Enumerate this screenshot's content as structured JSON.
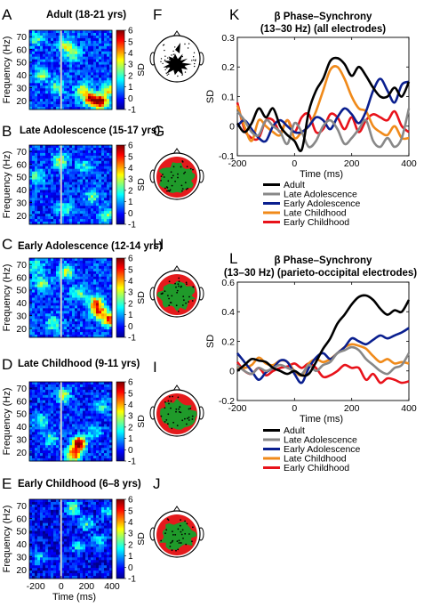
{
  "panels": {
    "A": {
      "letter": "A",
      "title": "Adult (18-21 yrs)"
    },
    "B": {
      "letter": "B",
      "title": "Late Adolescence (15-17 yrs)"
    },
    "C": {
      "letter": "C",
      "title": "Early Adolescence (12-14 yrs)"
    },
    "D": {
      "letter": "D",
      "title": "Late Childhood (9-11 yrs)"
    },
    "E": {
      "letter": "E",
      "title": "Early Childhood (6–8 yrs)"
    },
    "F": {
      "letter": "F"
    },
    "G": {
      "letter": "G"
    },
    "H": {
      "letter": "H"
    },
    "I": {
      "letter": "I"
    },
    "J": {
      "letter": "J"
    },
    "K": {
      "letter": "K",
      "title_line1": "β Phase–Synchrony",
      "title_line2": "(13–30 Hz) (all electrodes)"
    },
    "L": {
      "letter": "L",
      "title_line1": "β Phase–Synchrony",
      "title_line2": "(13–30 Hz) (parieto-occipital electrodes)"
    }
  },
  "labels": {
    "frequency_axis": "Frequency (Hz)",
    "time_axis": "Time (ms)",
    "colorbar_unit": "SD",
    "line_ylabel": "SD"
  },
  "chart_data": [
    {
      "type": "heatmap",
      "id": "tf-maps",
      "x_ticks": [
        "-200",
        "0",
        "200",
        "400"
      ],
      "xlim": [
        -250,
        400
      ],
      "y_ticks": [
        "20",
        "30",
        "40",
        "50",
        "60",
        "70"
      ],
      "ylim": [
        13,
        75
      ],
      "colorbar": {
        "ticks": [
          "-1",
          "0",
          "1",
          "2",
          "3",
          "4",
          "5",
          "6"
        ],
        "range": [
          -1,
          6
        ]
      },
      "maps": [
        {
          "panel": "A",
          "baseline": 0.3,
          "blobs": [
            {
              "t": 40,
              "f": 63,
              "a": 2.8
            },
            {
              "t": -150,
              "f": 40,
              "a": 2.2
            },
            {
              "t": 310,
              "f": 19,
              "a": 5.5
            },
            {
              "t": 230,
              "f": 21,
              "a": 4.6
            },
            {
              "t": 170,
              "f": 28,
              "a": 3.0
            },
            {
              "t": -30,
              "f": 30,
              "a": 2.3
            },
            {
              "t": 100,
              "f": 56,
              "a": 2.0
            },
            {
              "t": 380,
              "f": 28,
              "a": 3.0
            },
            {
              "t": -200,
              "f": 68,
              "a": 2.0
            }
          ]
        },
        {
          "panel": "B",
          "baseline": 0.2,
          "blobs": [
            {
              "t": -10,
              "f": 63,
              "a": 3.2
            },
            {
              "t": -190,
              "f": 50,
              "a": 2.0
            },
            {
              "t": 250,
              "f": 35,
              "a": 2.2
            },
            {
              "t": 360,
              "f": 20,
              "a": 2.3
            },
            {
              "t": 180,
              "f": 58,
              "a": 1.6
            },
            {
              "t": 30,
              "f": 25,
              "a": 1.9
            }
          ]
        },
        {
          "panel": "C",
          "baseline": 0.3,
          "blobs": [
            {
              "t": -150,
              "f": 55,
              "a": 2.5
            },
            {
              "t": 270,
              "f": 40,
              "a": 3.8
            },
            {
              "t": 300,
              "f": 33,
              "a": 4.0
            },
            {
              "t": 380,
              "f": 27,
              "a": 4.4
            },
            {
              "t": 40,
              "f": 64,
              "a": 2.6
            },
            {
              "t": -60,
              "f": 24,
              "a": 2.1
            },
            {
              "t": 140,
              "f": 47,
              "a": 2.2
            },
            {
              "t": -200,
              "f": 68,
              "a": 2.0
            }
          ]
        },
        {
          "panel": "D",
          "baseline": 0.1,
          "blobs": [
            {
              "t": 140,
              "f": 27,
              "a": 6.3
            },
            {
              "t": 100,
              "f": 18,
              "a": 4.6
            },
            {
              "t": 20,
              "f": 64,
              "a": 2.8
            },
            {
              "t": -160,
              "f": 44,
              "a": 2.2
            },
            {
              "t": 320,
              "f": 55,
              "a": 1.9
            },
            {
              "t": -80,
              "f": 30,
              "a": 2.0
            },
            {
              "t": 260,
              "f": 35,
              "a": 1.6
            }
          ]
        },
        {
          "panel": "E",
          "baseline": -0.2,
          "blobs": [
            {
              "t": 90,
              "f": 68,
              "a": 3.0
            },
            {
              "t": 200,
              "f": 56,
              "a": 2.2
            },
            {
              "t": 300,
              "f": 42,
              "a": 1.7
            },
            {
              "t": -170,
              "f": 30,
              "a": 1.5
            },
            {
              "t": 360,
              "f": 65,
              "a": 1.6
            },
            {
              "t": 130,
              "f": 38,
              "a": 1.6
            }
          ]
        }
      ]
    },
    {
      "type": "line",
      "panel": "K",
      "x": [
        -200,
        -175,
        -150,
        -125,
        -100,
        -75,
        -50,
        -25,
        0,
        25,
        50,
        75,
        100,
        125,
        150,
        175,
        200,
        225,
        250,
        275,
        300,
        325,
        350,
        375,
        400
      ],
      "xlim": [
        -200,
        400
      ],
      "x_ticks": [
        "-200",
        "0",
        "200",
        "400"
      ],
      "xlabel": "Time (ms)",
      "ylim": [
        -0.1,
        0.3
      ],
      "y_ticks": [
        "-0.1",
        "0",
        "0.1",
        "0.2",
        "0.3"
      ],
      "ylabel": "SD",
      "series": [
        {
          "name": "Adult",
          "color": "#000000",
          "values": [
            0.01,
            -0.02,
            0.01,
            0.06,
            0.03,
            0.06,
            0.0,
            -0.03,
            -0.05,
            -0.08,
            0.05,
            0.12,
            0.16,
            0.22,
            0.23,
            0.21,
            0.17,
            0.2,
            0.17,
            0.13,
            0.1,
            0.1,
            0.13,
            0.1,
            0.15
          ]
        },
        {
          "name": "Late Adolescence",
          "color": "#888888",
          "values": [
            0.05,
            0.02,
            -0.02,
            -0.03,
            0.02,
            0.0,
            -0.02,
            -0.06,
            0.01,
            -0.02,
            -0.07,
            -0.05,
            0.0,
            0.02,
            -0.01,
            -0.06,
            -0.04,
            -0.01,
            0.02,
            -0.05,
            -0.07,
            -0.04,
            -0.07,
            -0.04,
            0.06
          ]
        },
        {
          "name": "Early Adolescence",
          "color": "#0a1f8f",
          "values": [
            0.0,
            0.02,
            -0.01,
            -0.04,
            -0.05,
            0.0,
            0.02,
            0.0,
            -0.02,
            -0.02,
            0.0,
            0.03,
            0.02,
            -0.01,
            0.03,
            0.06,
            0.04,
            0.01,
            0.05,
            0.12,
            0.16,
            0.12,
            0.08,
            0.14,
            0.15
          ]
        },
        {
          "name": "Late Childhood",
          "color": "#f08a1a",
          "values": [
            0.07,
            0.0,
            -0.05,
            0.02,
            0.0,
            -0.02,
            -0.03,
            0.02,
            -0.04,
            -0.02,
            0.0,
            0.05,
            0.12,
            0.19,
            0.2,
            0.16,
            0.1,
            0.06,
            0.05,
            0.0,
            -0.02,
            -0.03,
            0.0,
            -0.04,
            -0.04
          ]
        },
        {
          "name": "Early Childhood",
          "color": "#e8121a",
          "values": [
            0.08,
            -0.01,
            -0.04,
            -0.04,
            0.02,
            0.02,
            -0.02,
            0.02,
            -0.02,
            0.03,
            0.04,
            -0.02,
            -0.01,
            0.04,
            0.03,
            -0.01,
            0.03,
            -0.02,
            0.02,
            0.04,
            0.03,
            0.02,
            0.05,
            0.0,
            -0.02
          ]
        }
      ]
    },
    {
      "type": "line",
      "panel": "L",
      "x": [
        -200,
        -175,
        -150,
        -125,
        -100,
        -75,
        -50,
        -25,
        0,
        25,
        50,
        75,
        100,
        125,
        150,
        175,
        200,
        225,
        250,
        275,
        300,
        325,
        350,
        375,
        400
      ],
      "xlim": [
        -200,
        400
      ],
      "x_ticks": [
        "-200",
        "0",
        "200",
        "400"
      ],
      "xlabel": "Time (ms)",
      "ylim": [
        -0.2,
        0.6
      ],
      "y_ticks": [
        "-0.2",
        "0",
        "0.2",
        "0.4",
        "0.6"
      ],
      "ylabel": "SD",
      "series": [
        {
          "name": "Adult",
          "color": "#000000",
          "values": [
            0.0,
            0.04,
            0.08,
            0.07,
            0.06,
            0.02,
            0.0,
            -0.02,
            0.0,
            -0.03,
            -0.02,
            0.06,
            0.15,
            0.22,
            0.32,
            0.38,
            0.45,
            0.5,
            0.51,
            0.48,
            0.42,
            0.38,
            0.41,
            0.4,
            0.48
          ]
        },
        {
          "name": "Late Adolescence",
          "color": "#888888",
          "values": [
            0.04,
            0.0,
            -0.02,
            0.02,
            0.0,
            0.02,
            0.04,
            0.02,
            0.0,
            -0.02,
            0.04,
            0.0,
            0.04,
            0.06,
            0.12,
            0.14,
            0.16,
            0.14,
            0.08,
            0.04,
            0.0,
            -0.02,
            0.02,
            0.04,
            0.12
          ]
        },
        {
          "name": "Early Adolescence",
          "color": "#0a1f8f",
          "values": [
            0.12,
            0.06,
            0.0,
            -0.06,
            -0.01,
            0.02,
            0.07,
            0.06,
            -0.02,
            -0.08,
            0.02,
            0.09,
            0.12,
            0.08,
            0.12,
            0.16,
            0.22,
            0.2,
            0.18,
            0.21,
            0.24,
            0.22,
            0.24,
            0.26,
            0.29
          ]
        },
        {
          "name": "Late Childhood",
          "color": "#f08a1a",
          "values": [
            0.03,
            0.02,
            0.04,
            0.09,
            0.05,
            0.04,
            0.07,
            0.06,
            0.0,
            -0.03,
            0.05,
            0.08,
            0.06,
            0.08,
            0.12,
            0.16,
            0.18,
            0.17,
            0.15,
            0.1,
            0.06,
            0.08,
            0.05,
            0.06,
            0.05
          ]
        },
        {
          "name": "Early Childhood",
          "color": "#e8121a",
          "values": [
            0.06,
            0.0,
            -0.02,
            0.02,
            -0.03,
            0.0,
            0.02,
            0.03,
            0.05,
            0.02,
            0.05,
            0.02,
            -0.04,
            -0.03,
            0.0,
            0.04,
            0.02,
            0.02,
            -0.06,
            -0.02,
            -0.08,
            -0.05,
            -0.06,
            -0.08,
            -0.07
          ]
        }
      ]
    },
    {
      "type": "other",
      "id": "topographies",
      "heads": [
        {
          "panel": "F",
          "style": "sparse"
        },
        {
          "panel": "G",
          "style": "dense"
        },
        {
          "panel": "H",
          "style": "dense"
        },
        {
          "panel": "I",
          "style": "dense"
        },
        {
          "panel": "J",
          "style": "dense"
        }
      ]
    }
  ]
}
